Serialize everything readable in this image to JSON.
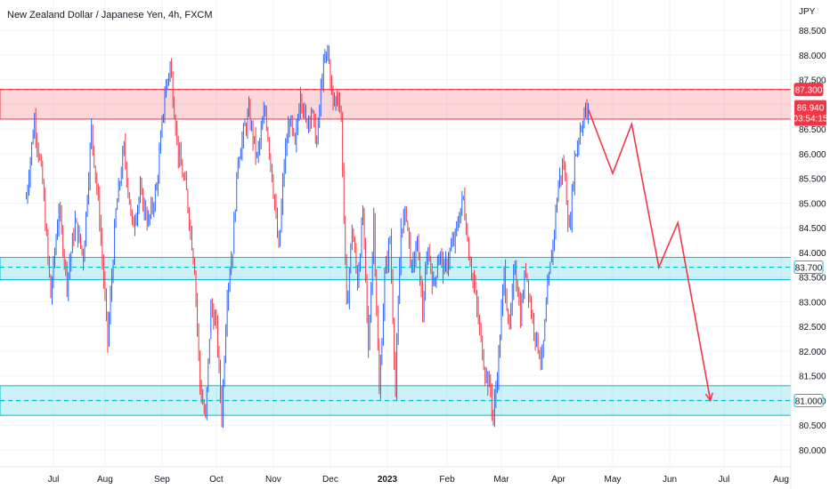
{
  "chart_data": {
    "type": "line",
    "title": "New Zealand Dollar / Japanese Yen, 4h, FXCM",
    "ylabel": "JPY",
    "ylim": [
      79.9,
      88.9
    ],
    "yticks": [
      "88.500",
      "88.000",
      "87.500",
      "87.000",
      "86.500",
      "86.000",
      "85.500",
      "85.000",
      "84.500",
      "84.000",
      "83.500",
      "83.000",
      "82.500",
      "82.000",
      "81.500",
      "81.000",
      "80.500",
      "80.000"
    ],
    "ytick_values": [
      88.5,
      88.0,
      87.5,
      87.0,
      86.5,
      86.0,
      85.5,
      85.0,
      84.5,
      84.0,
      83.5,
      83.0,
      82.5,
      82.0,
      81.5,
      81.0,
      80.5,
      80.0
    ],
    "xlim": [
      -10,
      268
    ],
    "xticks": [
      {
        "label": "Jul",
        "t": 0,
        "bold": false
      },
      {
        "label": "Aug",
        "t": 19,
        "bold": false
      },
      {
        "label": "Sep",
        "t": 40,
        "bold": false
      },
      {
        "label": "Oct",
        "t": 60,
        "bold": false
      },
      {
        "label": "Nov",
        "t": 81,
        "bold": false
      },
      {
        "label": "Dec",
        "t": 102,
        "bold": false
      },
      {
        "label": "2023",
        "t": 123,
        "bold": true
      },
      {
        "label": "Feb",
        "t": 145,
        "bold": false
      },
      {
        "label": "Mar",
        "t": 165,
        "bold": false
      },
      {
        "label": "Apr",
        "t": 186,
        "bold": false
      },
      {
        "label": "May",
        "t": 206,
        "bold": false
      },
      {
        "label": "Jun",
        "t": 227,
        "bold": false
      },
      {
        "label": "Jul",
        "t": 247,
        "bold": false
      },
      {
        "label": "Aug",
        "t": 268,
        "bold": false
      }
    ],
    "price_path": [
      [
        -10,
        85.1
      ],
      [
        -7,
        86.7
      ],
      [
        -4,
        85.4
      ],
      [
        -1,
        83.1
      ],
      [
        2,
        84.9
      ],
      [
        5,
        83.4
      ],
      [
        8,
        84.6
      ],
      [
        11,
        83.9
      ],
      [
        14,
        86.5
      ],
      [
        17,
        84.7
      ],
      [
        20,
        82.2
      ],
      [
        23,
        84.8
      ],
      [
        26,
        86.1
      ],
      [
        29,
        84.5
      ],
      [
        32,
        85.2
      ],
      [
        35,
        84.6
      ],
      [
        38,
        85.3
      ],
      [
        41,
        87.2
      ],
      [
        43,
        87.8
      ],
      [
        46,
        86.0
      ],
      [
        49,
        85.2
      ],
      [
        52,
        83.7
      ],
      [
        54,
        81.3
      ],
      [
        56,
        80.6
      ],
      [
        58,
        82.9
      ],
      [
        60,
        82.5
      ],
      [
        62,
        80.7
      ],
      [
        64,
        83.2
      ],
      [
        66,
        84.1
      ],
      [
        68,
        85.9
      ],
      [
        70,
        86.4
      ],
      [
        72,
        86.8
      ],
      [
        75,
        85.9
      ],
      [
        78,
        86.9
      ],
      [
        81,
        85.3
      ],
      [
        83,
        84.0
      ],
      [
        85,
        85.8
      ],
      [
        87,
        86.7
      ],
      [
        89,
        86.1
      ],
      [
        91,
        87.3
      ],
      [
        93,
        86.6
      ],
      [
        95,
        86.9
      ],
      [
        97,
        86.2
      ],
      [
        99,
        87.6
      ],
      [
        101,
        88.1
      ],
      [
        103,
        87.0
      ],
      [
        105,
        87.2
      ],
      [
        106,
        86.7
      ],
      [
        108,
        82.8
      ],
      [
        110,
        84.5
      ],
      [
        112,
        83.4
      ],
      [
        114,
        84.8
      ],
      [
        116,
        82.0
      ],
      [
        118,
        84.7
      ],
      [
        120,
        81.1
      ],
      [
        122,
        83.5
      ],
      [
        124,
        84.3
      ],
      [
        126,
        81.2
      ],
      [
        128,
        84.5
      ],
      [
        130,
        84.8
      ],
      [
        132,
        83.6
      ],
      [
        134,
        84.2
      ],
      [
        136,
        82.8
      ],
      [
        138,
        84.1
      ],
      [
        140,
        83.3
      ],
      [
        142,
        84.0
      ],
      [
        144,
        83.6
      ],
      [
        146,
        84.0
      ],
      [
        148,
        84.3
      ],
      [
        150,
        84.9
      ],
      [
        151,
        85.1
      ],
      [
        153,
        84.0
      ],
      [
        155,
        83.3
      ],
      [
        157,
        82.4
      ],
      [
        159,
        81.6
      ],
      [
        161,
        81.2
      ],
      [
        162,
        80.6
      ],
      [
        164,
        81.9
      ],
      [
        166,
        83.6
      ],
      [
        168,
        82.4
      ],
      [
        170,
        83.8
      ],
      [
        172,
        82.7
      ],
      [
        174,
        83.7
      ],
      [
        176,
        82.8
      ],
      [
        178,
        82.2
      ],
      [
        180,
        81.8
      ],
      [
        182,
        83.2
      ],
      [
        184,
        84.2
      ],
      [
        186,
        85.4
      ],
      [
        188,
        85.8
      ],
      [
        190,
        84.4
      ],
      [
        192,
        85.9
      ],
      [
        194,
        86.5
      ],
      [
        196,
        86.9
      ],
      [
        197,
        86.7
      ]
    ],
    "projection": [
      [
        197,
        86.9
      ],
      [
        206,
        85.6
      ],
      [
        213,
        86.6
      ],
      [
        223,
        83.7
      ],
      [
        230,
        84.6
      ],
      [
        242,
        81.0
      ]
    ],
    "zones": [
      {
        "low": 86.7,
        "high": 87.3,
        "color": "#f23645"
      },
      {
        "low": 83.45,
        "high": 83.9,
        "color": "#00bcd4"
      },
      {
        "low": 80.7,
        "high": 81.3,
        "color": "#00bcd4"
      }
    ],
    "levels": [
      {
        "value": 87.3,
        "label": "87.300",
        "color": "#f23645"
      },
      {
        "value": 83.7,
        "label": "83.700",
        "color": "#00bcd4"
      },
      {
        "value": 81.0,
        "label": "81.000",
        "color": "#00bcd4"
      }
    ],
    "last_price": {
      "value": 86.94,
      "label": "86.940",
      "countdown": "03:54:15",
      "color": "#f23645"
    },
    "colors": {
      "up": "#2962ff",
      "down": "#f23645",
      "projection": "#f23645",
      "axis_text": "#131722",
      "grid": "#f0f3fa"
    }
  }
}
